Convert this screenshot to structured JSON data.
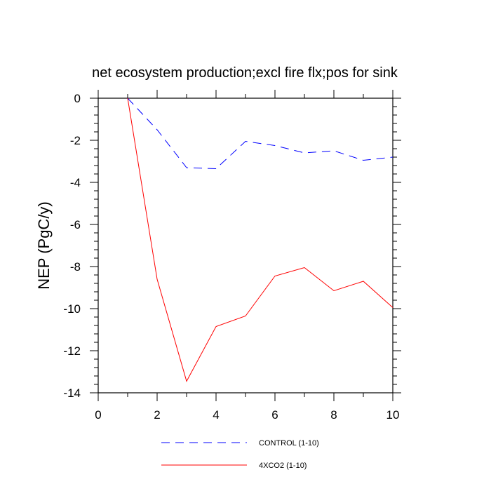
{
  "chart_data": {
    "type": "line",
    "title": "net ecosystem production;excl fire flx;pos for sink",
    "xlabel": "",
    "ylabel": "NEP  (PgC/y)",
    "xlim": [
      0,
      10
    ],
    "ylim": [
      -14,
      0
    ],
    "x_ticks": [
      0,
      2,
      4,
      6,
      8,
      10
    ],
    "y_ticks": [
      0,
      -2,
      -4,
      -6,
      -8,
      -10,
      -12,
      -14
    ],
    "x_tick_labels": [
      "0",
      "2",
      "4",
      "6",
      "8",
      "10"
    ],
    "y_tick_labels": [
      "0",
      "-2",
      "-4",
      "-6",
      "-8",
      "-10",
      "-12",
      "-14"
    ],
    "grid": false,
    "legend_position": "bottom",
    "series": [
      {
        "name": "CONTROL (1-10)",
        "color": "#0000ff",
        "dash": "dashed",
        "x": [
          1,
          2,
          3,
          4,
          5,
          6,
          7,
          8,
          9,
          10
        ],
        "values": [
          0,
          -1.5,
          -3.3,
          -3.35,
          -2.05,
          -2.25,
          -2.6,
          -2.5,
          -2.95,
          -2.8
        ]
      },
      {
        "name": "4XCO2 (1-10)",
        "color": "#ff0000",
        "dash": "solid",
        "x": [
          1,
          2,
          3,
          4,
          5,
          6,
          7,
          8,
          9,
          10
        ],
        "values": [
          0,
          -8.6,
          -13.45,
          -10.85,
          -10.35,
          -8.45,
          -8.05,
          -9.15,
          -8.7,
          -9.95
        ]
      }
    ]
  }
}
